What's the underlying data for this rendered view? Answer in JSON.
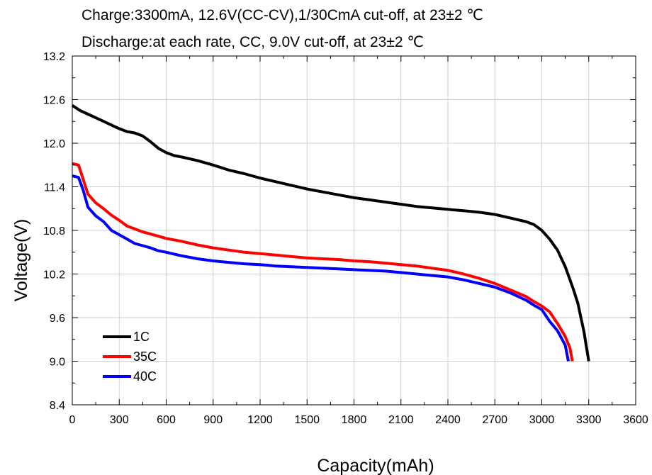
{
  "chart_data": {
    "type": "line",
    "title_lines": [
      "Charge:3300mA, 12.6V(CC-CV),1/30CmA cut-off, at 23±2 ℃",
      "Discharge:at each rate, CC, 9.0V cut-off, at 23±2 ℃"
    ],
    "xlabel": "Capacity(mAh)",
    "ylabel": "Voltage(V)",
    "xlim": [
      0,
      3600
    ],
    "ylim": [
      8.4,
      13.2
    ],
    "x_ticks": [
      0,
      300,
      600,
      900,
      1200,
      1500,
      1800,
      2100,
      2400,
      2700,
      3000,
      3300,
      3600
    ],
    "y_ticks": [
      8.4,
      9.0,
      9.6,
      10.2,
      10.8,
      11.4,
      12.0,
      12.6,
      13.2
    ],
    "y_tick_labels": [
      "8.4",
      "9.0",
      "9.6",
      "10.2",
      "10.8",
      "11.4",
      "12.0",
      "12.6",
      "13.2"
    ],
    "grid": true,
    "legend_position": "bottom-left",
    "series": [
      {
        "name": "1C",
        "color": "#000000",
        "points": [
          [
            0,
            12.52
          ],
          [
            50,
            12.45
          ],
          [
            100,
            12.4
          ],
          [
            150,
            12.35
          ],
          [
            200,
            12.3
          ],
          [
            250,
            12.25
          ],
          [
            300,
            12.2
          ],
          [
            350,
            12.16
          ],
          [
            400,
            12.14
          ],
          [
            450,
            12.1
          ],
          [
            500,
            12.02
          ],
          [
            550,
            11.93
          ],
          [
            600,
            11.87
          ],
          [
            650,
            11.83
          ],
          [
            700,
            11.81
          ],
          [
            800,
            11.76
          ],
          [
            900,
            11.7
          ],
          [
            1000,
            11.63
          ],
          [
            1100,
            11.58
          ],
          [
            1200,
            11.52
          ],
          [
            1300,
            11.47
          ],
          [
            1400,
            11.42
          ],
          [
            1500,
            11.37
          ],
          [
            1600,
            11.33
          ],
          [
            1700,
            11.29
          ],
          [
            1800,
            11.25
          ],
          [
            1900,
            11.22
          ],
          [
            2000,
            11.19
          ],
          [
            2100,
            11.16
          ],
          [
            2200,
            11.13
          ],
          [
            2300,
            11.11
          ],
          [
            2400,
            11.09
          ],
          [
            2500,
            11.07
          ],
          [
            2600,
            11.05
          ],
          [
            2700,
            11.02
          ],
          [
            2800,
            10.97
          ],
          [
            2900,
            10.92
          ],
          [
            2950,
            10.88
          ],
          [
            3000,
            10.8
          ],
          [
            3050,
            10.68
          ],
          [
            3100,
            10.53
          ],
          [
            3150,
            10.3
          ],
          [
            3200,
            10.0
          ],
          [
            3230,
            9.8
          ],
          [
            3250,
            9.6
          ],
          [
            3270,
            9.4
          ],
          [
            3285,
            9.2
          ],
          [
            3300,
            9.0
          ]
        ]
      },
      {
        "name": "35C",
        "color": "#ff0000",
        "points": [
          [
            0,
            11.72
          ],
          [
            40,
            11.7
          ],
          [
            70,
            11.5
          ],
          [
            100,
            11.3
          ],
          [
            150,
            11.18
          ],
          [
            200,
            11.1
          ],
          [
            250,
            11.01
          ],
          [
            300,
            10.94
          ],
          [
            350,
            10.86
          ],
          [
            400,
            10.82
          ],
          [
            450,
            10.78
          ],
          [
            500,
            10.75
          ],
          [
            550,
            10.72
          ],
          [
            600,
            10.69
          ],
          [
            700,
            10.65
          ],
          [
            800,
            10.6
          ],
          [
            900,
            10.56
          ],
          [
            1000,
            10.53
          ],
          [
            1100,
            10.5
          ],
          [
            1200,
            10.48
          ],
          [
            1300,
            10.46
          ],
          [
            1400,
            10.44
          ],
          [
            1500,
            10.42
          ],
          [
            1600,
            10.41
          ],
          [
            1700,
            10.4
          ],
          [
            1800,
            10.38
          ],
          [
            1900,
            10.37
          ],
          [
            2000,
            10.35
          ],
          [
            2100,
            10.33
          ],
          [
            2200,
            10.31
          ],
          [
            2300,
            10.28
          ],
          [
            2400,
            10.25
          ],
          [
            2500,
            10.2
          ],
          [
            2600,
            10.14
          ],
          [
            2700,
            10.07
          ],
          [
            2800,
            9.98
          ],
          [
            2900,
            9.89
          ],
          [
            2950,
            9.82
          ],
          [
            3000,
            9.76
          ],
          [
            3050,
            9.68
          ],
          [
            3100,
            9.52
          ],
          [
            3150,
            9.34
          ],
          [
            3180,
            9.18
          ],
          [
            3195,
            9.0
          ]
        ]
      },
      {
        "name": "40C",
        "color": "#0000ff",
        "points": [
          [
            0,
            11.55
          ],
          [
            40,
            11.53
          ],
          [
            70,
            11.35
          ],
          [
            100,
            11.12
          ],
          [
            150,
            11.0
          ],
          [
            200,
            10.92
          ],
          [
            250,
            10.8
          ],
          [
            300,
            10.74
          ],
          [
            350,
            10.68
          ],
          [
            400,
            10.62
          ],
          [
            450,
            10.59
          ],
          [
            500,
            10.56
          ],
          [
            550,
            10.52
          ],
          [
            600,
            10.5
          ],
          [
            700,
            10.45
          ],
          [
            800,
            10.41
          ],
          [
            900,
            10.38
          ],
          [
            1000,
            10.36
          ],
          [
            1100,
            10.34
          ],
          [
            1200,
            10.33
          ],
          [
            1300,
            10.31
          ],
          [
            1400,
            10.3
          ],
          [
            1500,
            10.29
          ],
          [
            1600,
            10.28
          ],
          [
            1700,
            10.27
          ],
          [
            1800,
            10.26
          ],
          [
            1900,
            10.25
          ],
          [
            2000,
            10.24
          ],
          [
            2100,
            10.22
          ],
          [
            2200,
            10.2
          ],
          [
            2300,
            10.18
          ],
          [
            2400,
            10.16
          ],
          [
            2500,
            10.12
          ],
          [
            2600,
            10.07
          ],
          [
            2700,
            10.02
          ],
          [
            2800,
            9.94
          ],
          [
            2900,
            9.84
          ],
          [
            2950,
            9.77
          ],
          [
            3000,
            9.71
          ],
          [
            3050,
            9.55
          ],
          [
            3100,
            9.42
          ],
          [
            3150,
            9.22
          ],
          [
            3170,
            9.0
          ]
        ]
      }
    ]
  }
}
